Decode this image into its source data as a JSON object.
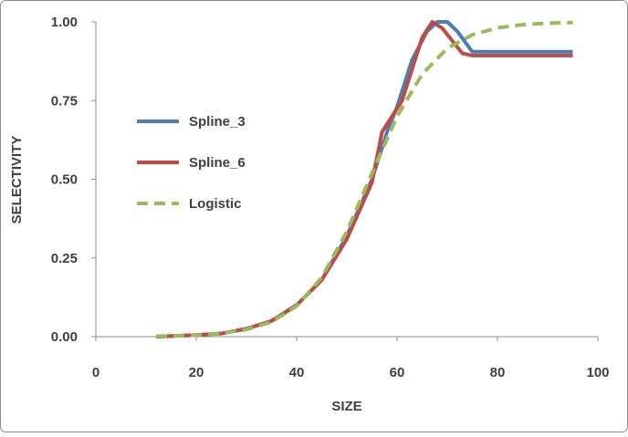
{
  "chart_data": {
    "type": "line",
    "title": "",
    "xlabel": "SIZE",
    "ylabel": "SELECTIVITY",
    "xlim": [
      0,
      100
    ],
    "ylim": [
      0,
      1
    ],
    "xticks": [
      "0",
      "20",
      "40",
      "60",
      "80",
      "100"
    ],
    "yticks": [
      "0.00",
      "0.25",
      "0.50",
      "0.75",
      "1.00"
    ],
    "grid": false,
    "legend_position": "center-left",
    "series": [
      {
        "name": "Spline_3",
        "color": "#4a7ebb",
        "dash": "solid",
        "x": [
          12,
          20,
          25,
          30,
          35,
          40,
          45,
          50,
          55,
          58,
          60,
          63,
          66,
          68,
          70,
          72,
          75,
          95
        ],
        "y": [
          0,
          0.005,
          0.01,
          0.025,
          0.05,
          0.1,
          0.18,
          0.32,
          0.5,
          0.65,
          0.73,
          0.88,
          0.97,
          1.0,
          1.0,
          0.97,
          0.905,
          0.905
        ]
      },
      {
        "name": "Spline_6",
        "color": "#be4b48",
        "dash": "solid",
        "x": [
          12,
          20,
          25,
          30,
          35,
          40,
          45,
          50,
          55,
          57,
          61,
          65,
          67,
          69,
          73,
          75,
          95
        ],
        "y": [
          0,
          0.005,
          0.01,
          0.025,
          0.05,
          0.1,
          0.18,
          0.31,
          0.49,
          0.65,
          0.75,
          0.95,
          1.0,
          0.98,
          0.9,
          0.893,
          0.893
        ]
      },
      {
        "name": "Logistic",
        "color": "#9bbb59",
        "dash": "dashed",
        "x": [
          12,
          15,
          20,
          25,
          30,
          35,
          40,
          45,
          50,
          55,
          60,
          65,
          70,
          75,
          80,
          85,
          90,
          95
        ],
        "y": [
          0.0014,
          0.0023,
          0.0049,
          0.0106,
          0.0226,
          0.047,
          0.097,
          0.188,
          0.334,
          0.519,
          0.7,
          0.834,
          0.916,
          0.959,
          0.981,
          0.991,
          0.996,
          0.998
        ]
      }
    ]
  }
}
